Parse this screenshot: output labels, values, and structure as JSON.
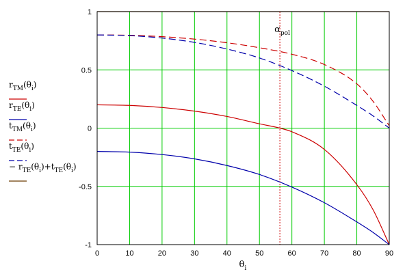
{
  "chart_data": {
    "type": "line",
    "title": "",
    "xlabel": "θ",
    "xlabel_sub": "i",
    "ylabel": "",
    "xlim": [
      0,
      90
    ],
    "ylim": [
      -1,
      1
    ],
    "x_ticks": [
      0,
      10,
      20,
      30,
      40,
      50,
      60,
      70,
      80,
      90
    ],
    "y_ticks": [
      -1,
      -0.5,
      0,
      0.5,
      1
    ],
    "grid": true,
    "grid_color": "#00cc00",
    "legend_position": "left",
    "annotation": {
      "base": "α",
      "sub": "pol",
      "x": 56.3,
      "color": "#cc0000"
    },
    "legend": [
      {
        "id": "rtm",
        "parts": [
          [
            "r",
            ""
          ],
          [
            "TM",
            "sub"
          ],
          [
            "(θ",
            ""
          ],
          [
            "i",
            "sub"
          ],
          [
            ")",
            ""
          ]
        ],
        "color": "#cc0000",
        "dash": false
      },
      {
        "id": "rte",
        "parts": [
          [
            "r",
            ""
          ],
          [
            "TE",
            "sub"
          ],
          [
            "(θ",
            ""
          ],
          [
            "i",
            "sub"
          ],
          [
            ")",
            ""
          ]
        ],
        "color": "#0000aa",
        "dash": false
      },
      {
        "id": "ttm",
        "parts": [
          [
            "t",
            ""
          ],
          [
            "TM",
            "sub"
          ],
          [
            "(θ",
            ""
          ],
          [
            "i",
            "sub"
          ],
          [
            ")",
            ""
          ]
        ],
        "color": "#cc0000",
        "dash": true
      },
      {
        "id": "tte",
        "parts": [
          [
            "t",
            ""
          ],
          [
            "TE",
            "sub"
          ],
          [
            "(θ",
            ""
          ],
          [
            "i",
            "sub"
          ],
          [
            ")",
            ""
          ]
        ],
        "color": "#0000aa",
        "dash": true
      },
      {
        "id": "sum",
        "parts": [
          [
            "− r",
            ""
          ],
          [
            "TE",
            "sub"
          ],
          [
            "(θ",
            ""
          ],
          [
            "i",
            "sub"
          ],
          [
            ")+t",
            ""
          ],
          [
            "TE",
            "sub"
          ],
          [
            "(θ",
            ""
          ],
          [
            "i",
            "sub"
          ],
          [
            ")",
            ""
          ]
        ],
        "color": "#6b3a00",
        "dash": false
      }
    ],
    "series": [
      {
        "id": "rtm",
        "color": "#cc0000",
        "dash": false,
        "x": [
          0,
          10,
          20,
          30,
          40,
          50,
          56.3,
          60,
          70,
          80,
          85,
          90
        ],
        "y": [
          0.2,
          0.195,
          0.177,
          0.146,
          0.1,
          0.037,
          0.0,
          -0.031,
          -0.183,
          -0.485,
          -0.7,
          -1.0
        ]
      },
      {
        "id": "rte",
        "color": "#0000aa",
        "dash": false,
        "x": [
          0,
          10,
          20,
          30,
          40,
          50,
          60,
          70,
          80,
          85,
          90
        ],
        "y": [
          -0.2,
          -0.206,
          -0.227,
          -0.264,
          -0.321,
          -0.398,
          -0.506,
          -0.64,
          -0.805,
          -0.895,
          -1.0
        ]
      },
      {
        "id": "ttm",
        "color": "#cc0000",
        "dash": true,
        "x": [
          0,
          10,
          20,
          30,
          40,
          50,
          60,
          70,
          80,
          85,
          90
        ],
        "y": [
          0.8,
          0.797,
          0.785,
          0.764,
          0.733,
          0.69,
          0.634,
          0.546,
          0.38,
          0.23,
          0.02
        ]
      },
      {
        "id": "tte",
        "color": "#0000aa",
        "dash": true,
        "x": [
          0,
          10,
          20,
          30,
          40,
          50,
          60,
          70,
          80,
          85,
          90
        ],
        "y": [
          0.8,
          0.794,
          0.773,
          0.736,
          0.679,
          0.602,
          0.494,
          0.36,
          0.195,
          0.105,
          0.0
        ]
      },
      {
        "id": "sum",
        "color": "#6b3a00",
        "dash": false,
        "x": [
          0,
          90
        ],
        "y": [
          1.0,
          1.0
        ]
      }
    ]
  }
}
